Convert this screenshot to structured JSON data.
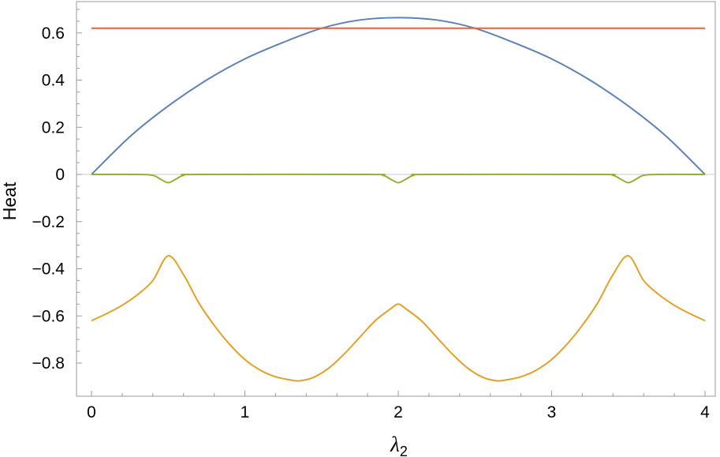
{
  "chart_data": {
    "type": "line",
    "xlabel": "λ2",
    "xlabel_main": "λ",
    "xlabel_sub": "2",
    "ylabel": "Heat",
    "xlim": [
      -0.1,
      4.05
    ],
    "ylim": [
      -0.96,
      0.75
    ],
    "x_ticks": [
      0,
      1,
      2,
      3,
      4
    ],
    "x_tick_labels": [
      "0",
      "1",
      "2",
      "3",
      "4"
    ],
    "y_ticks": [
      0.6,
      0.4,
      0.2,
      0,
      -0.2,
      -0.4,
      -0.6,
      -0.8
    ],
    "y_tick_labels": [
      "0.6",
      "0.4",
      "0.2",
      "0",
      "−0.2",
      "−0.4",
      "−0.6",
      "−0.8"
    ],
    "grid": false,
    "zero_line": true,
    "frame": true,
    "colors": {
      "frame": "#9a9a9a",
      "zero_line": "#c8c8c8"
    },
    "series": [
      {
        "color": "#5e81b5",
        "x": [
          0,
          0.25,
          0.5,
          0.75,
          1.0,
          1.25,
          1.5,
          1.75,
          2.0,
          2.25,
          2.5,
          2.75,
          3.0,
          3.25,
          3.5,
          3.75,
          4.0
        ],
        "y": [
          0,
          0.16,
          0.29,
          0.4,
          0.49,
          0.56,
          0.62,
          0.655,
          0.665,
          0.655,
          0.62,
          0.56,
          0.49,
          0.4,
          0.29,
          0.16,
          0
        ]
      },
      {
        "color": "#e1a126",
        "x": [
          0,
          0.1,
          0.2,
          0.3,
          0.4,
          0.5,
          0.6,
          0.7,
          0.8,
          0.9,
          1.0,
          1.1,
          1.2,
          1.3,
          1.36,
          1.45,
          1.55,
          1.65,
          1.75,
          1.85,
          1.95,
          2.0,
          2.05,
          2.15,
          2.25,
          2.35,
          2.45,
          2.55,
          2.64,
          2.7,
          2.8,
          2.9,
          3.0,
          3.1,
          3.2,
          3.3,
          3.4,
          3.5,
          3.6,
          3.7,
          3.8,
          3.9,
          4.0
        ],
        "y": [
          -0.62,
          -0.59,
          -0.555,
          -0.51,
          -0.45,
          -0.345,
          -0.425,
          -0.545,
          -0.64,
          -0.72,
          -0.785,
          -0.83,
          -0.858,
          -0.872,
          -0.875,
          -0.86,
          -0.82,
          -0.76,
          -0.69,
          -0.62,
          -0.57,
          -0.55,
          -0.57,
          -0.62,
          -0.69,
          -0.76,
          -0.82,
          -0.86,
          -0.875,
          -0.872,
          -0.858,
          -0.83,
          -0.785,
          -0.72,
          -0.64,
          -0.545,
          -0.425,
          -0.345,
          -0.45,
          -0.51,
          -0.555,
          -0.59,
          -0.62
        ]
      },
      {
        "color": "#8fb032",
        "x": [
          0,
          0.3,
          0.4,
          0.45,
          0.5,
          0.55,
          0.6,
          0.7,
          1.8,
          1.9,
          1.95,
          2.0,
          2.05,
          2.1,
          2.2,
          3.3,
          3.4,
          3.45,
          3.5,
          3.55,
          3.6,
          3.7,
          4.0
        ],
        "y": [
          0,
          0,
          -0.004,
          -0.02,
          -0.035,
          -0.02,
          -0.004,
          0,
          0,
          -0.004,
          -0.02,
          -0.035,
          -0.02,
          -0.004,
          0,
          0,
          -0.004,
          -0.02,
          -0.035,
          -0.02,
          -0.004,
          0,
          0
        ]
      },
      {
        "color": "#eb6235",
        "x": [
          0,
          4.0
        ],
        "y": [
          0.62,
          0.62
        ]
      }
    ]
  }
}
